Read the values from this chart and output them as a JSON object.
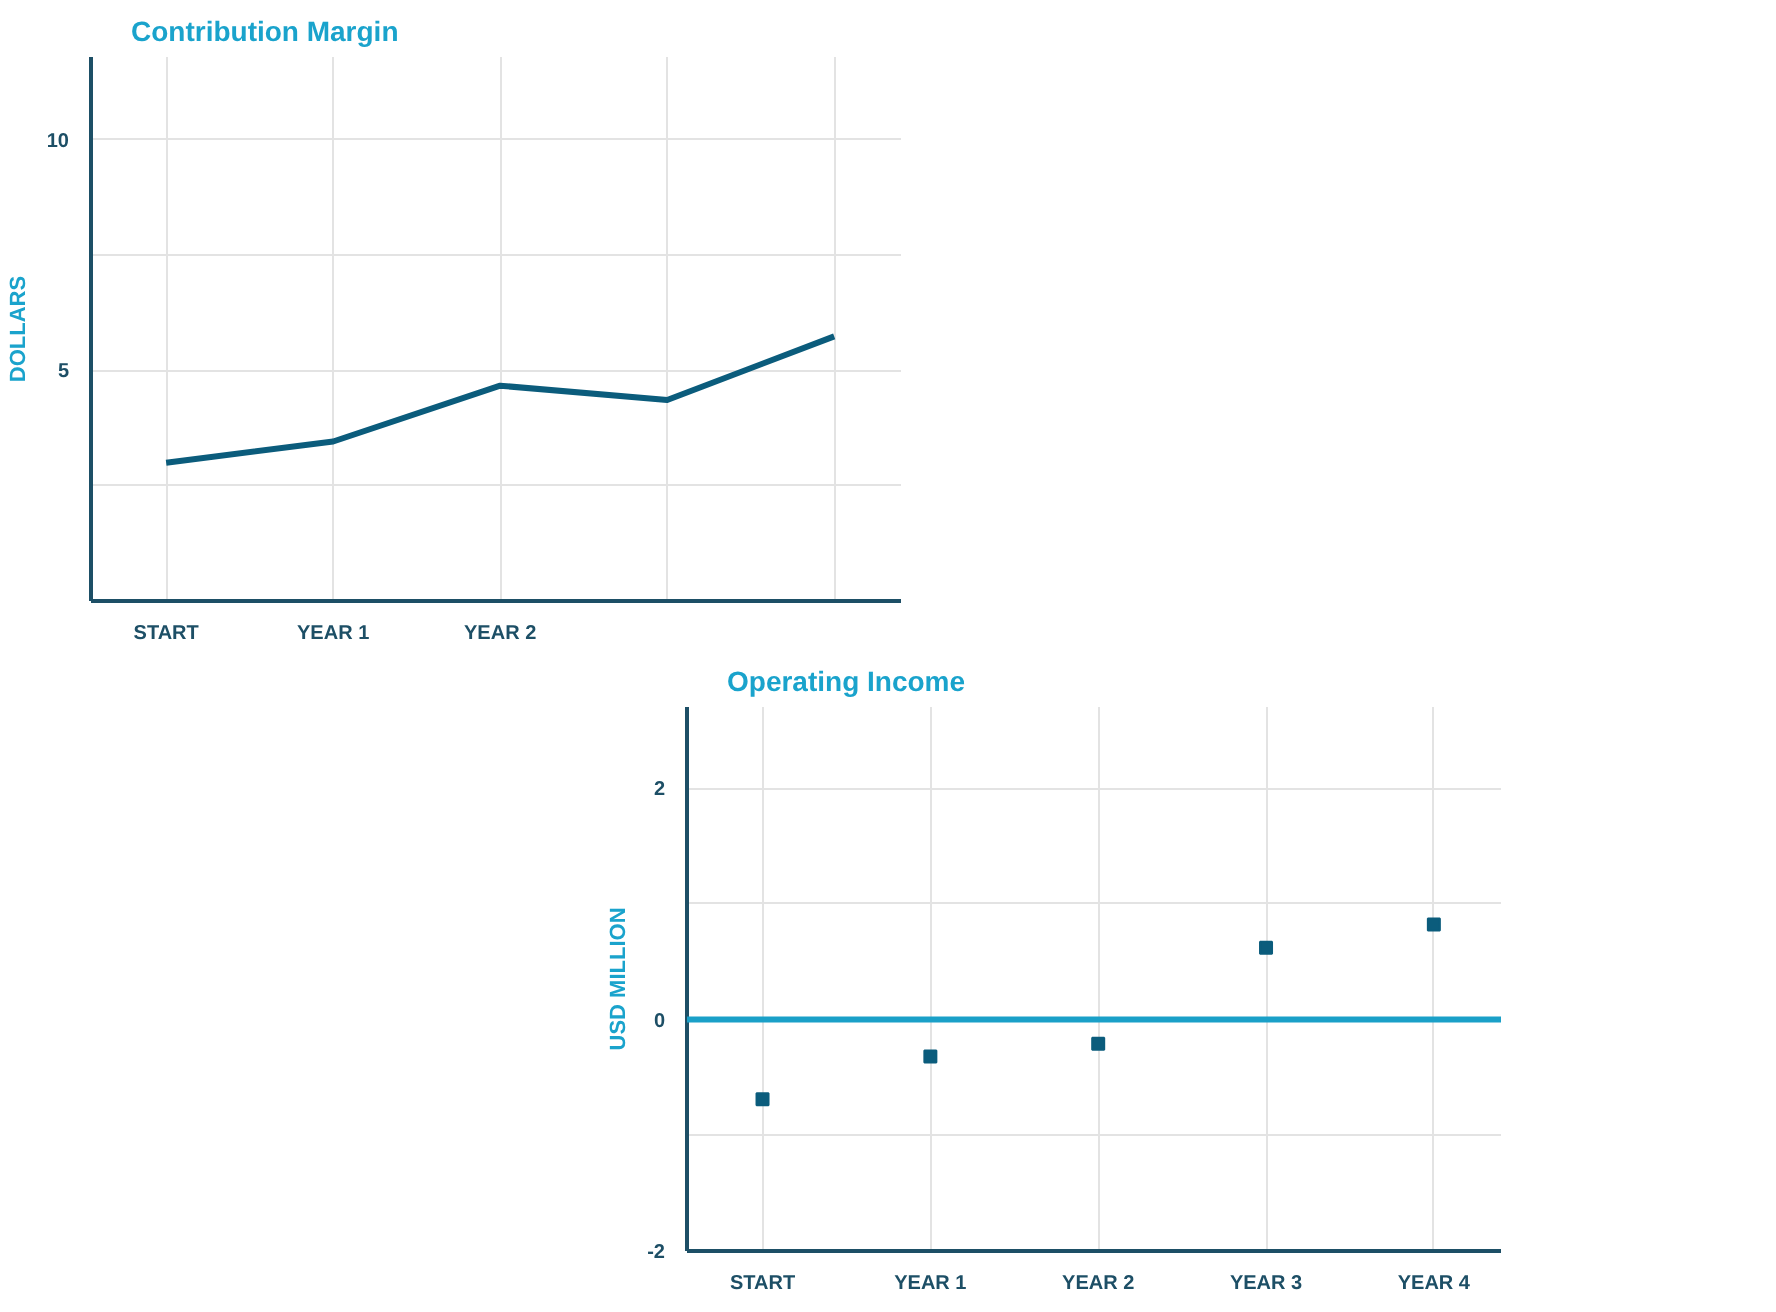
{
  "chart_data": [
    {
      "type": "line",
      "title": "Contribution Margin",
      "ylabel": "DOLLARS",
      "categories": [
        "START",
        "YEAR 1",
        "YEAR 2",
        null,
        null
      ],
      "series": [
        {
          "color": "#0b5c7c",
          "values": [
            3.0,
            3.46,
            4.67,
            4.36,
            5.74
          ]
        }
      ],
      "ylim": [
        0,
        11.8
      ],
      "yticks": [
        {
          "value": 2.5,
          "label": null
        },
        5,
        {
          "value": 7.5,
          "label": null
        },
        10
      ],
      "grid": true
    },
    {
      "type": "scatter",
      "title": "Operating Income",
      "ylabel": "USD MILLION",
      "categories": [
        "START",
        "YEAR 1",
        "YEAR 2",
        "YEAR 3",
        "YEAR 4"
      ],
      "series": [
        {
          "color": "#0b5c7c",
          "values": [
            -0.69,
            -0.32,
            -0.21,
            0.62,
            0.82
          ]
        }
      ],
      "ylim": [
        -2,
        2.7
      ],
      "yticks": [
        -2,
        {
          "value": -1,
          "label": null
        },
        0,
        {
          "value": 1,
          "label": null
        },
        2
      ],
      "grid": true,
      "marker": "square",
      "ref_lines": [
        {
          "axis": "y",
          "value": 0,
          "color": "#1aa0c8"
        }
      ]
    }
  ]
}
